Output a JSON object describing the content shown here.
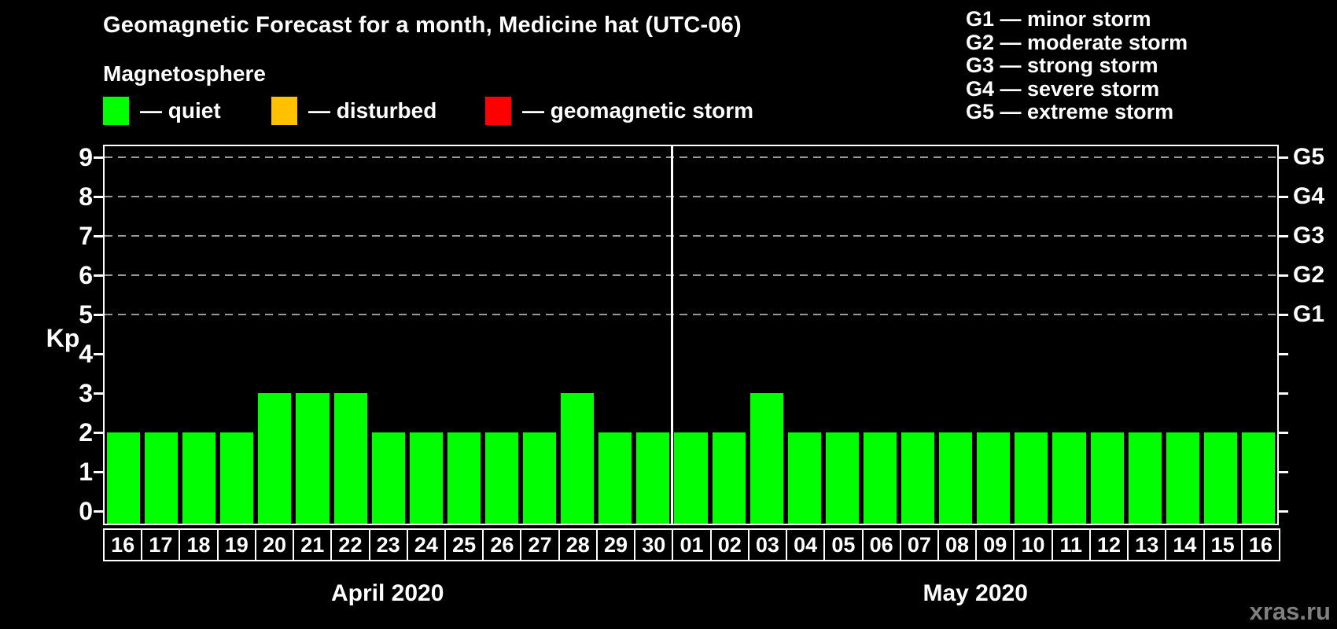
{
  "title": "Geomagnetic Forecast for a month, Medicine hat (UTC-06)",
  "legend": {
    "title": "Magnetosphere",
    "items": [
      {
        "label": "— quiet",
        "status": "quiet",
        "color": "#00ff00"
      },
      {
        "label": "— disturbed",
        "status": "disturbed",
        "color": "#ffc000"
      },
      {
        "label": "— geomagnetic storm",
        "status": "storm",
        "color": "#ff0000"
      }
    ]
  },
  "g_legend": [
    "G1 — minor storm",
    "G2 — moderate storm",
    "G3 — strong storm",
    "G4 — severe storm",
    "G5 — extreme storm"
  ],
  "watermark": "xras.ru",
  "chart_data": {
    "type": "bar",
    "title": "Geomagnetic Forecast for a month, Medicine hat (UTC-06)",
    "ylabel": "Kp",
    "xlabel": "",
    "ylim": [
      -0.35,
      9.3
    ],
    "yticks": [
      0,
      1,
      2,
      3,
      4,
      5,
      6,
      7,
      8,
      9
    ],
    "grid_levels": [
      5,
      6,
      7,
      8,
      9
    ],
    "grid": "dashed horizontal lines only at Kp 5-9",
    "right_axis_labels": {
      "5": "G1",
      "6": "G2",
      "7": "G3",
      "8": "G4",
      "9": "G5"
    },
    "legend_position": "top-left",
    "months": [
      {
        "label": "April 2020",
        "status": "quiet",
        "days": [
          "16",
          "17",
          "18",
          "19",
          "20",
          "21",
          "22",
          "23",
          "24",
          "25",
          "26",
          "27",
          "28",
          "29",
          "30"
        ],
        "values": [
          2,
          2,
          2,
          2,
          3,
          3,
          3,
          2,
          2,
          2,
          2,
          2,
          3,
          2,
          2
        ]
      },
      {
        "label": "May 2020",
        "status": "quiet",
        "days": [
          "01",
          "02",
          "03",
          "04",
          "05",
          "06",
          "07",
          "08",
          "09",
          "10",
          "11",
          "12",
          "13",
          "14",
          "15",
          "16"
        ],
        "values": [
          2,
          2,
          3,
          2,
          2,
          2,
          2,
          2,
          2,
          2,
          2,
          2,
          2,
          2,
          2,
          2
        ]
      }
    ]
  }
}
